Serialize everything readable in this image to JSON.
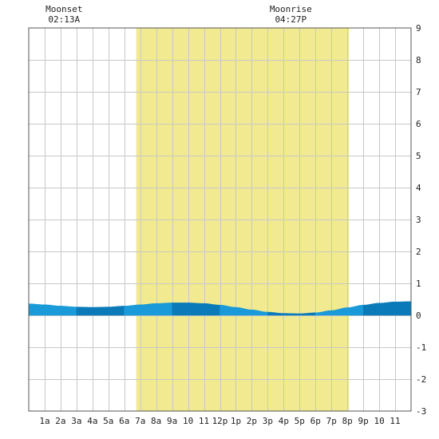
{
  "chart_data": {
    "type": "area",
    "x_tick_labels": [
      "1a",
      "2a",
      "3a",
      "4a",
      "5a",
      "6a",
      "7a",
      "8a",
      "9a",
      "10",
      "11",
      "12p",
      "1p",
      "2p",
      "3p",
      "4p",
      "5p",
      "6p",
      "7p",
      "8p",
      "9p",
      "10",
      "11"
    ],
    "y_ticks": [
      "-3",
      "-2",
      "-1",
      "0",
      "1",
      "2",
      "3",
      "4",
      "5",
      "6",
      "7",
      "8",
      "9"
    ],
    "ylim": [
      -3,
      9
    ],
    "xlim_hours": [
      0,
      24
    ],
    "daylight_hours": [
      6.75,
      20.1
    ],
    "annotations": [
      {
        "label": "Moonset",
        "time": "02:13A",
        "hour": 2.22
      },
      {
        "label": "Moonrise",
        "time": "04:27P",
        "hour": 16.45
      }
    ],
    "series": [
      {
        "hours": [
          0,
          1,
          2,
          3,
          4,
          5,
          6,
          7,
          8,
          9,
          10,
          11,
          12,
          13,
          14,
          15,
          16,
          17,
          18,
          19,
          20,
          21,
          22,
          23,
          24
        ],
        "values": [
          0.36,
          0.33,
          0.29,
          0.26,
          0.25,
          0.26,
          0.29,
          0.33,
          0.37,
          0.39,
          0.39,
          0.37,
          0.32,
          0.25,
          0.17,
          0.1,
          0.06,
          0.05,
          0.08,
          0.15,
          0.24,
          0.32,
          0.38,
          0.42,
          0.43
        ]
      }
    ],
    "colors": {
      "daylight": "#f2ea90",
      "tide_light": "#1a9ad8",
      "tide_dark": "#0a7bb8",
      "grid": "#c8c8c8"
    }
  }
}
